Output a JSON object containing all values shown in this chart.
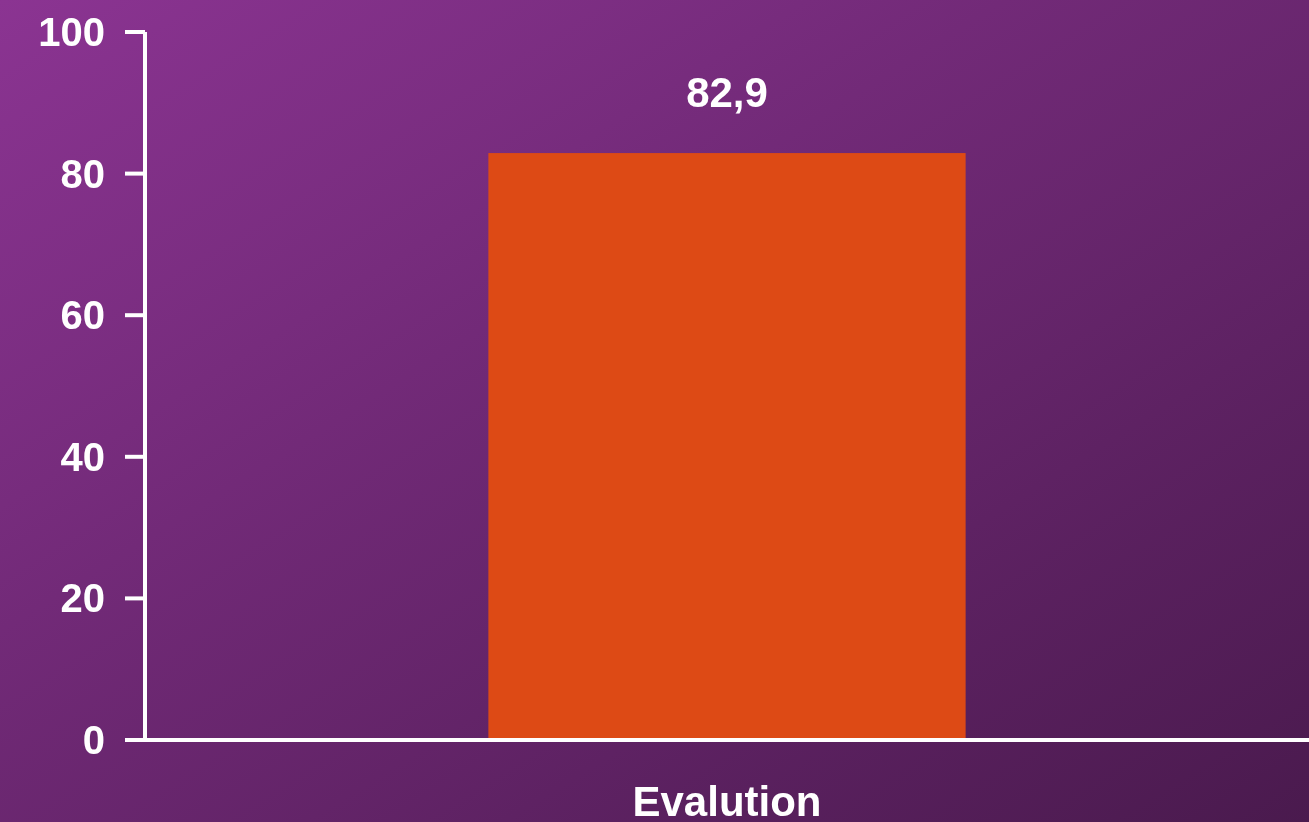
{
  "chart_data": {
    "type": "bar",
    "categories": [
      "Evalution"
    ],
    "values": [
      82.9
    ],
    "value_labels": [
      "82,9"
    ],
    "color": "#dd4a15",
    "ylim": [
      0,
      100
    ],
    "yticks": [
      0,
      20,
      40,
      60,
      80,
      100
    ],
    "grid": false
  }
}
